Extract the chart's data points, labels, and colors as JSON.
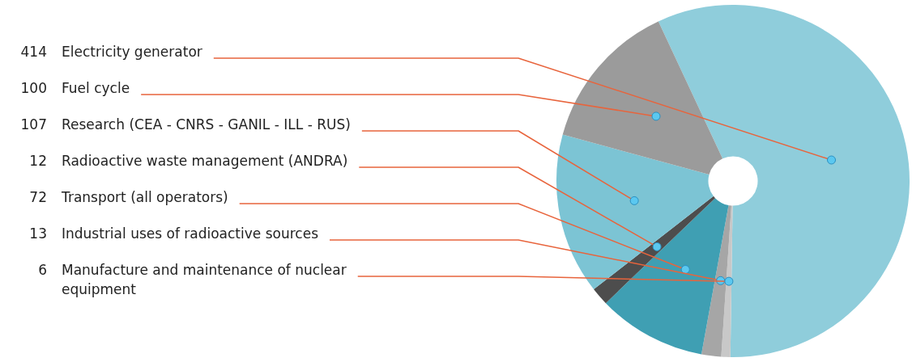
{
  "chart_data": {
    "type": "donut",
    "categories": [
      "Electricity generator",
      "Manufacture and maintenance of nuclear equipment",
      "Industrial uses of radioactive sources",
      "Transport (all operators)",
      "Radioactive waste management (ANDRA)",
      "Research (CEA - CNRS - GANIL - ILL - RUS)",
      "Fuel cycle"
    ],
    "values": [
      414,
      6,
      13,
      72,
      12,
      107,
      100
    ],
    "colors": [
      "#8fcddb",
      "#c8c8c8",
      "#a6a6a6",
      "#3f9fb3",
      "#4d4d4d",
      "#7cc4d4",
      "#9b9b9b"
    ],
    "data_labels": true,
    "legend": false
  }
}
